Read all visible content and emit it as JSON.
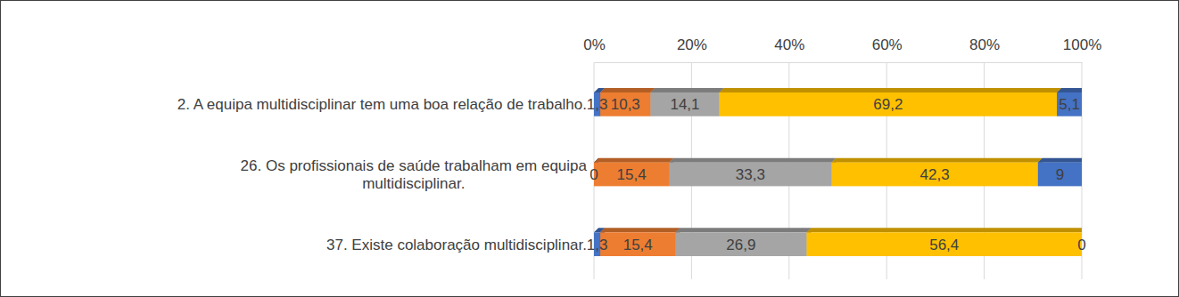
{
  "chart_data": {
    "type": "bar",
    "orientation": "horizontal",
    "stacked": true,
    "data_labels": true,
    "grid": true,
    "categories": [
      "2. A equipa multidisciplinar tem uma boa relação de trabalho.",
      "26. Os profissionais de saúde trabalham em equipa multidisciplinar.",
      "37. Existe colaboração multidisciplinar."
    ],
    "xlim": [
      0,
      100
    ],
    "xticks": [
      {
        "value": 0,
        "label": "0%"
      },
      {
        "value": 20,
        "label": "20%"
      },
      {
        "value": 40,
        "label": "40%"
      },
      {
        "value": 60,
        "label": "60%"
      },
      {
        "value": 80,
        "label": "80%"
      },
      {
        "value": 100,
        "label": "100%"
      }
    ],
    "series": [
      {
        "color": "#4472c4",
        "values": [
          1.3,
          0,
          1.3
        ],
        "value_labels": [
          "1,3",
          "0",
          "1,3"
        ]
      },
      {
        "color": "#ed7d31",
        "values": [
          10.3,
          15.4,
          15.4
        ],
        "value_labels": [
          "10,3",
          "15,4",
          "15,4"
        ]
      },
      {
        "color": "#a5a5a5",
        "values": [
          14.1,
          33.3,
          26.9
        ],
        "value_labels": [
          "14,1",
          "33,3",
          "26,9"
        ]
      },
      {
        "color": "#ffc000",
        "values": [
          69.2,
          42.3,
          56.4
        ],
        "value_labels": [
          "69,2",
          "42,3",
          "56,4"
        ]
      },
      {
        "color": "#4472c4",
        "values": [
          5.1,
          9,
          0
        ],
        "value_labels": [
          "5,1",
          "9",
          "0"
        ]
      }
    ]
  }
}
